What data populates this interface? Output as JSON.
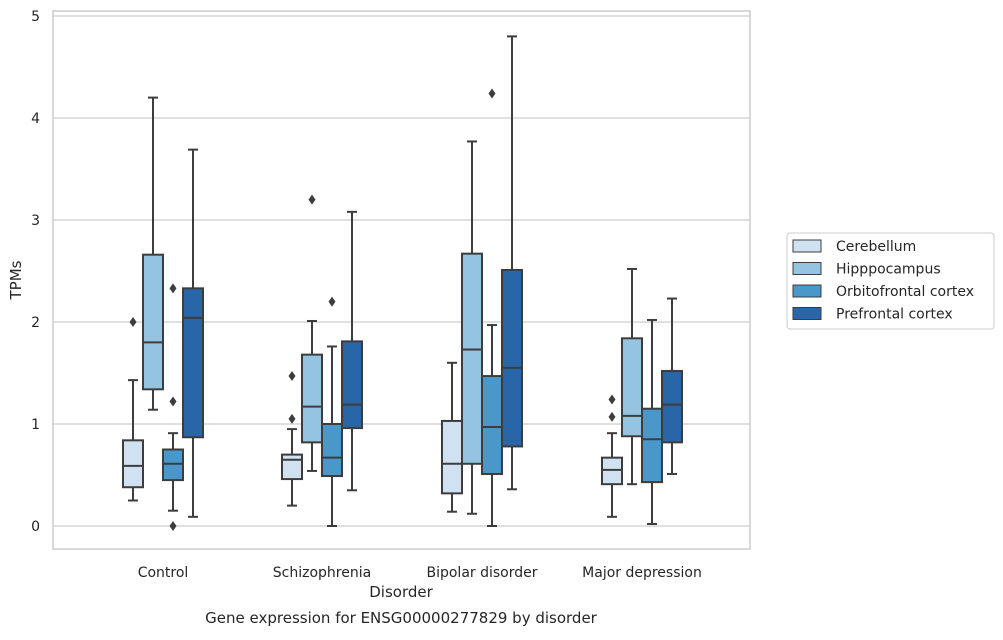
{
  "chart_data": {
    "type": "box",
    "title": "",
    "caption": "Gene expression for ENSG00000277829 by disorder",
    "xlabel": "Disorder",
    "ylabel": "TPMs",
    "ylim": [
      -0.22,
      5.06
    ],
    "yticks": [
      0,
      1,
      2,
      3,
      4,
      5
    ],
    "categories": [
      "Control",
      "Schizophrenia",
      "Bipolar disorder",
      "Major depression"
    ],
    "grid": "horizontal",
    "legend_position": "right",
    "series": [
      {
        "name": "Cerebellum",
        "color": "#d0e1f2",
        "boxes": [
          {
            "whisker_low": 0.25,
            "q1": 0.38,
            "median": 0.59,
            "q3": 0.84,
            "whisker_high": 1.43,
            "outliers": [
              2.0
            ]
          },
          {
            "whisker_low": 0.2,
            "q1": 0.46,
            "median": 0.65,
            "q3": 0.7,
            "whisker_high": 0.95,
            "outliers": [
              1.05,
              1.47
            ]
          },
          {
            "whisker_low": 0.14,
            "q1": 0.32,
            "median": 0.61,
            "q3": 1.03,
            "whisker_high": 1.6,
            "outliers": []
          },
          {
            "whisker_low": 0.09,
            "q1": 0.41,
            "median": 0.55,
            "q3": 0.67,
            "whisker_high": 0.91,
            "outliers": [
              1.07,
              1.24
            ]
          }
        ]
      },
      {
        "name": "Hipppocampus",
        "color": "#94c4df",
        "boxes": [
          {
            "whisker_low": 1.14,
            "q1": 1.34,
            "median": 1.8,
            "q3": 2.66,
            "whisker_high": 4.2,
            "outliers": []
          },
          {
            "whisker_low": 0.54,
            "q1": 0.82,
            "median": 1.17,
            "q3": 1.68,
            "whisker_high": 2.01,
            "outliers": [
              3.2
            ]
          },
          {
            "whisker_low": 0.12,
            "q1": 0.61,
            "median": 1.73,
            "q3": 2.67,
            "whisker_high": 3.77,
            "outliers": []
          },
          {
            "whisker_low": 0.41,
            "q1": 0.88,
            "median": 1.08,
            "q3": 1.84,
            "whisker_high": 2.52,
            "outliers": []
          }
        ]
      },
      {
        "name": "Orbitofrontal cortex",
        "color": "#4a98c9",
        "boxes": [
          {
            "whisker_low": 0.15,
            "q1": 0.45,
            "median": 0.61,
            "q3": 0.75,
            "whisker_high": 0.91,
            "outliers": [
              0.0,
              1.22,
              2.33
            ]
          },
          {
            "whisker_low": 0.0,
            "q1": 0.49,
            "median": 0.67,
            "q3": 1.0,
            "whisker_high": 1.76,
            "outliers": [
              2.2
            ]
          },
          {
            "whisker_low": 0.0,
            "q1": 0.51,
            "median": 0.97,
            "q3": 1.47,
            "whisker_high": 1.97,
            "outliers": [
              4.24
            ]
          },
          {
            "whisker_low": 0.02,
            "q1": 0.43,
            "median": 0.85,
            "q3": 1.15,
            "whisker_high": 2.02,
            "outliers": []
          }
        ]
      },
      {
        "name": "Prefrontal cortex",
        "color": "#2866a8",
        "boxes": [
          {
            "whisker_low": 0.09,
            "q1": 0.87,
            "median": 2.04,
            "q3": 2.33,
            "whisker_high": 3.69,
            "outliers": []
          },
          {
            "whisker_low": 0.35,
            "q1": 0.96,
            "median": 1.19,
            "q3": 1.81,
            "whisker_high": 3.08,
            "outliers": []
          },
          {
            "whisker_low": 0.36,
            "q1": 0.78,
            "median": 1.55,
            "q3": 2.51,
            "whisker_high": 4.8,
            "outliers": []
          },
          {
            "whisker_low": 0.51,
            "q1": 0.82,
            "median": 1.19,
            "q3": 1.52,
            "whisker_high": 2.23,
            "outliers": []
          }
        ]
      }
    ]
  }
}
